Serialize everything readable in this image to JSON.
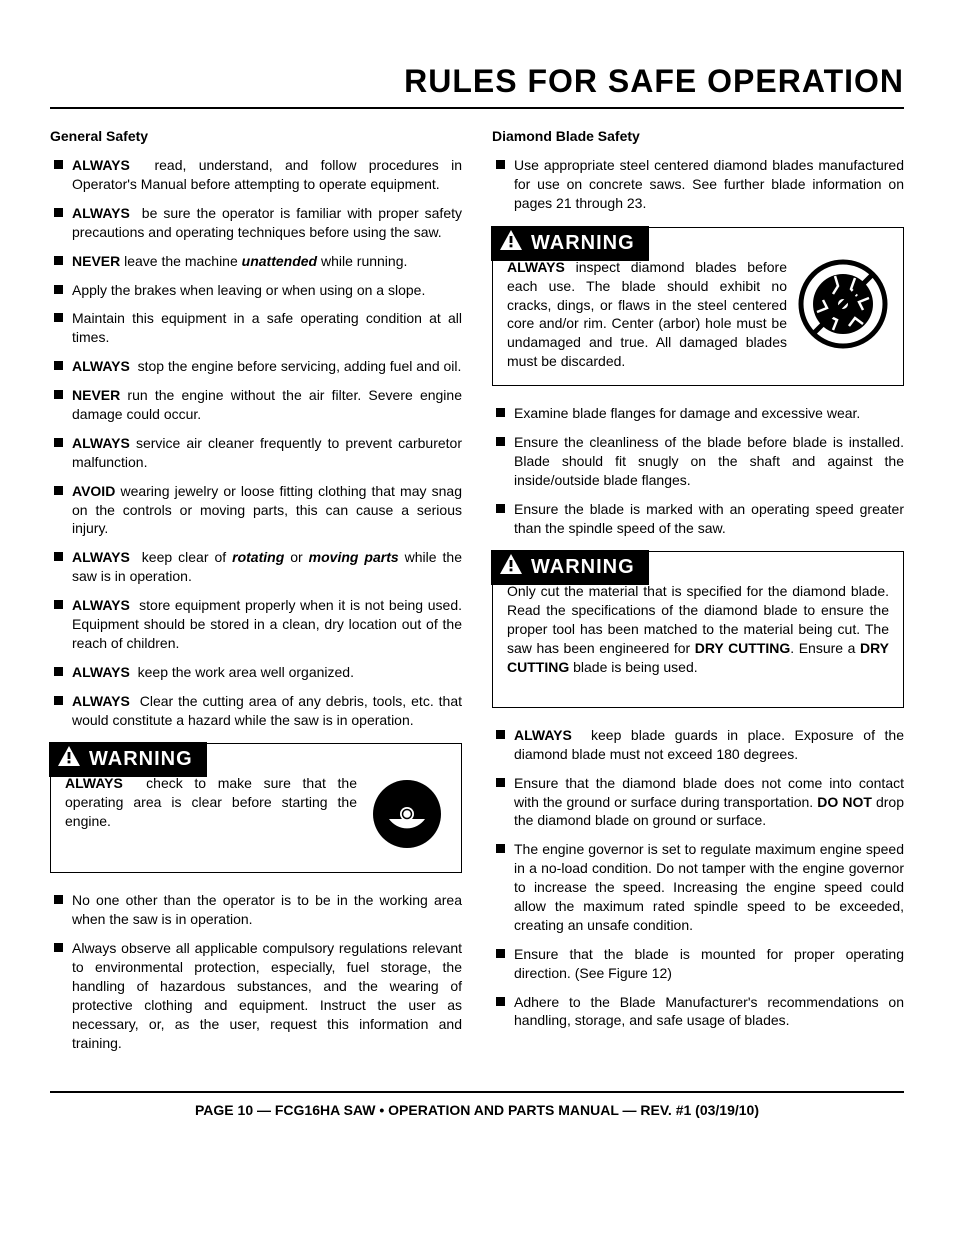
{
  "title": "RULES FOR SAFE OPERATION",
  "left": {
    "heading": "General Safety",
    "items1": [
      {
        "html": "<b>ALWAYS</b>&nbsp; read, understand, and follow procedures in Operator's Manual before attempting to operate equipment."
      },
      {
        "html": "<b>ALWAYS</b>&nbsp; be sure the operator is familiar with proper safety precautions and operating techniques before using the saw."
      },
      {
        "html": "<b>NEVER</b> leave the machine <b><i>unattended</i></b> while running."
      },
      {
        "html": "Apply the brakes when leaving or when using on a slope."
      },
      {
        "html": "Maintain this equipment in a safe operating condition at all times."
      },
      {
        "html": "<b>ALWAYS</b>&nbsp; stop the engine before servicing, adding fuel and oil."
      },
      {
        "html": "<b>NEVER</b> run the engine without the air filter.  Severe engine damage could occur."
      },
      {
        "html": "<b>ALWAYS</b> service air cleaner frequently to prevent carburetor malfunction."
      },
      {
        "html": "<b>AVOID</b> wearing jewelry or loose fitting clothing that may snag on the controls or moving parts, this can cause a serious injury."
      },
      {
        "html": "<b>ALWAYS</b>&nbsp; keep clear of <b><i>rotating</i></b> or <b><i>moving parts</i></b> while the saw is in operation."
      },
      {
        "html": "<b>ALWAYS</b>&nbsp; store equipment properly when it is not being used. Equipment should be stored in a clean, dry location out of the reach of children."
      },
      {
        "html": "<b>ALWAYS</b>&nbsp; keep the work area well organized."
      },
      {
        "html": "<b>ALWAYS</b>&nbsp; Clear the cutting area of any debris, tools, etc. that would constitute a hazard while the saw is in operation."
      }
    ],
    "warning1": {
      "label": "WARNING",
      "body_html": "<b>ALWAYS</b>&nbsp; check to make sure that the operating area is clear before starting the engine."
    },
    "items2": [
      {
        "html": "No one other than the operator is to be in the working area when the saw is in operation."
      },
      {
        "html": "Always observe all applicable compulsory regulations relevant to environmental protection, especially, fuel storage, the handling of hazardous substances, and the wearing of protective clothing and equipment.  Instruct the user as necessary, or, as the user, request this information and training."
      }
    ]
  },
  "right": {
    "heading": "Diamond Blade Safety",
    "items1": [
      {
        "html": "Use appropriate steel centered diamond blades manufactured for use on concrete saws.  See further blade information on pages 21 through 23."
      }
    ],
    "warning1": {
      "label": "WARNING",
      "body_html": "<b>ALWAYS</b> inspect diamond blades before each use.  The blade should exhibit  no cracks, dings, or flaws in the steel centered core and/or rim.  Center (arbor) hole must be undamaged and true. All damaged blades must be discarded."
    },
    "items2": [
      {
        "html": "Examine blade flanges for damage and excessive wear."
      },
      {
        "html": "Ensure the cleanliness of the blade before blade is installed. Blade should fit snugly on the shaft and against the inside/outside blade flanges."
      },
      {
        "html": "Ensure the blade is marked with an operating speed greater than the spindle speed of the saw."
      }
    ],
    "warning2": {
      "label": "WARNING",
      "body_html": "Only cut the material that is specified for the diamond blade. Read the specifications of the diamond blade to ensure the proper tool has been matched to the material being cut. The saw has been engineered for <b>DRY CUTTING</b>.  Ensure a <b>DRY CUTTING</b> blade is being used."
    },
    "items3": [
      {
        "html": "<b>ALWAYS</b>&nbsp; keep blade guards in place.  Exposure of the diamond blade must not exceed 180 degrees."
      },
      {
        "html": "Ensure that the diamond blade does not come into contact with the ground or surface during transportation.  <b>DO NOT</b> drop the diamond blade on ground or surface."
      },
      {
        "html": "The  engine governor is set to regulate maximum engine speed in a no-load condition.  Do not tamper with the engine governor to increase the speed.  Increasing the engine speed could allow the maximum rated spindle speed to be exceeded, creating an unsafe condition."
      },
      {
        "html": "Ensure that the blade is mounted for proper operating direction. (See Figure 12)"
      },
      {
        "html": "Adhere to the Blade Manufacturer's recommendations on handling, storage, and safe usage of blades."
      }
    ]
  },
  "footer": "PAGE 10 — FCG16HA SAW  •  OPERATION AND PARTS MANUAL — REV. #1  (03/19/10)",
  "colors": {
    "text": "#000000",
    "bg": "#ffffff"
  }
}
